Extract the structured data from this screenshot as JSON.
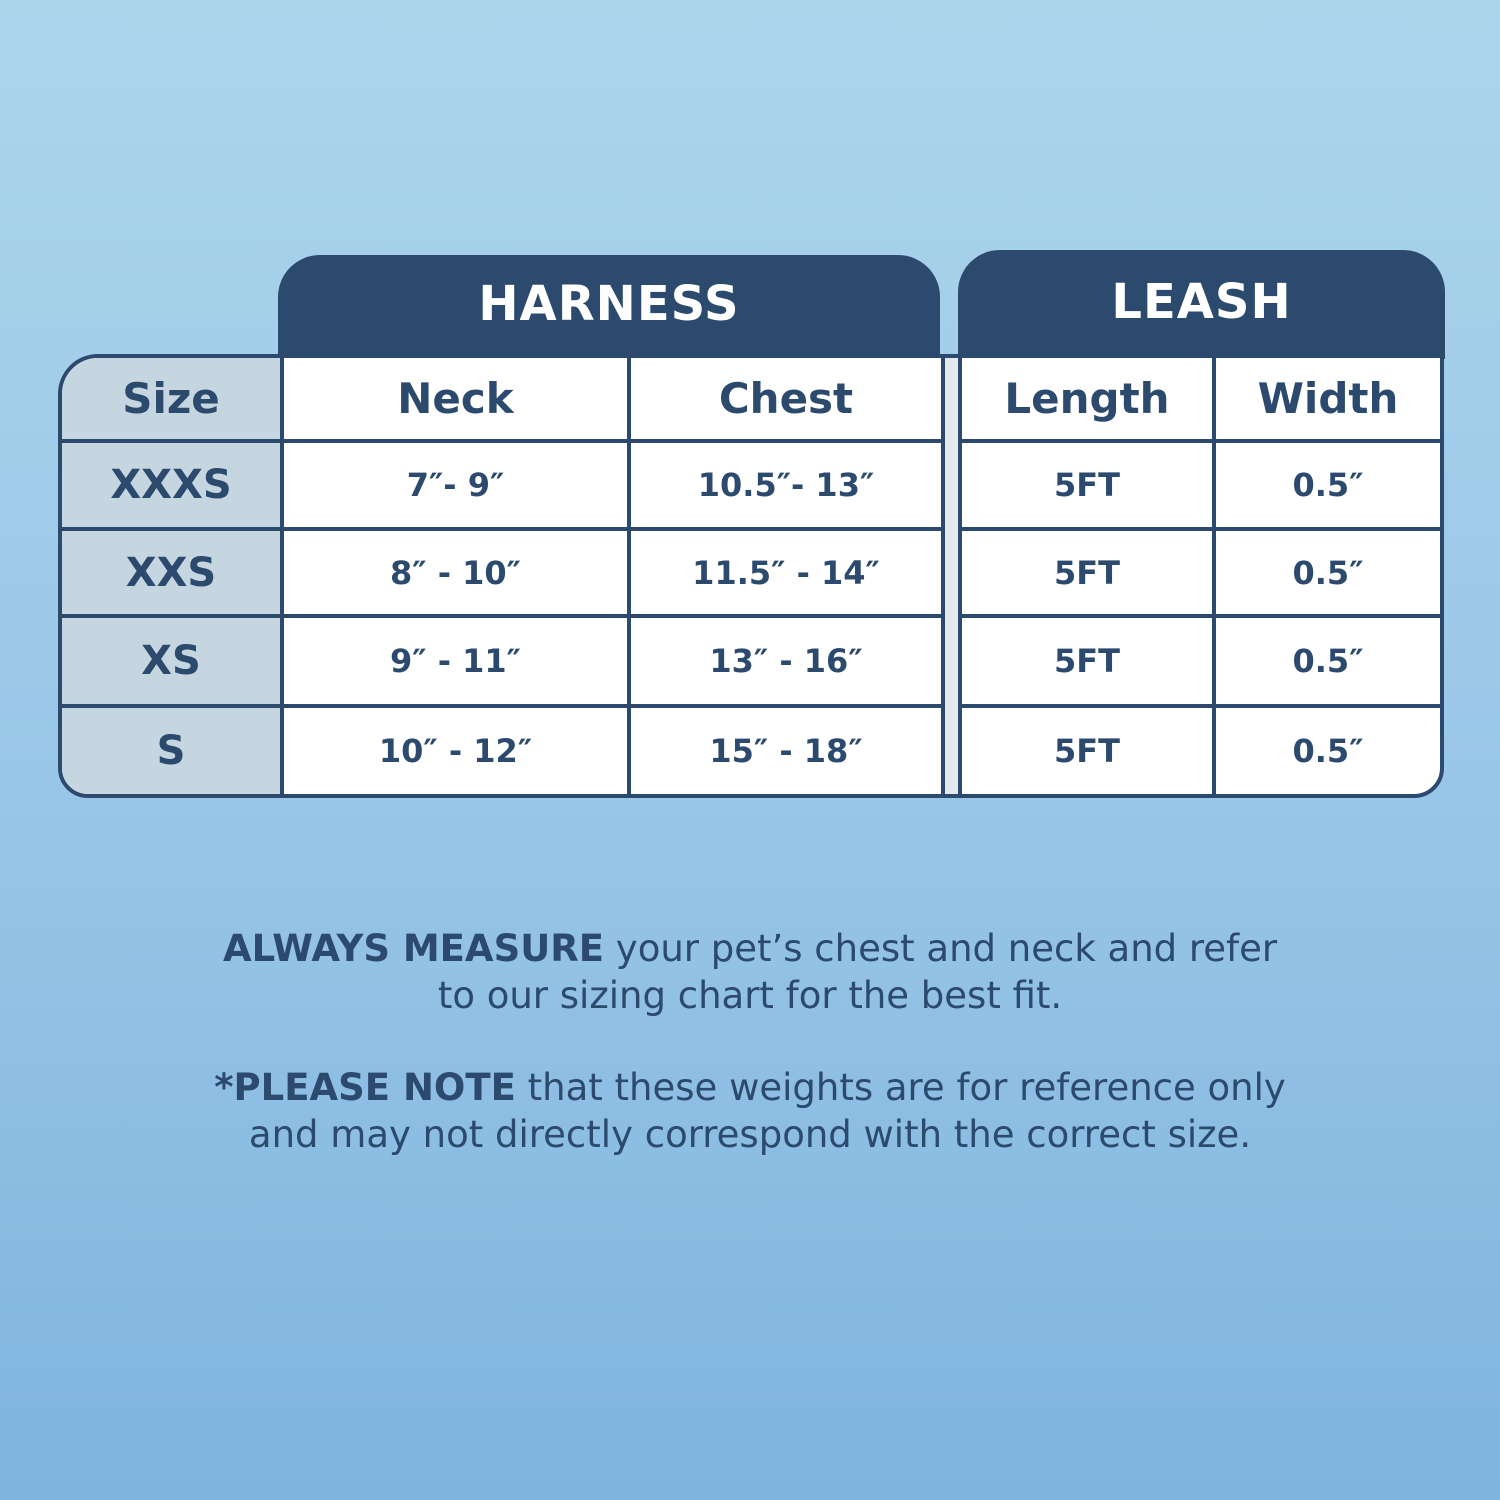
{
  "groups": {
    "harness": "HARNESS",
    "leash": "LEASH"
  },
  "headers": {
    "size": "Size",
    "neck": "Neck",
    "chest": "Chest",
    "length": "Length",
    "width": "Width"
  },
  "rows": [
    {
      "size": "XXXS",
      "neck": "7″- 9″",
      "chest": "10.5″- 13″",
      "length": "5FT",
      "width": "0.5″"
    },
    {
      "size": "XXS",
      "neck": "8″ - 10″",
      "chest": "11.5″ - 14″",
      "length": "5FT",
      "width": "0.5″"
    },
    {
      "size": "XS",
      "neck": "9″ - 11″",
      "chest": "13″ - 16″",
      "length": "5FT",
      "width": "0.5″"
    },
    {
      "size": "S",
      "neck": "10″ - 12″",
      "chest": "15″ - 18″",
      "length": "5FT",
      "width": "0.5″"
    }
  ],
  "notes": {
    "measure_bold": "ALWAYS MEASURE",
    "measure_line1": " your pet’s chest and neck and refer",
    "measure_line2": "to our sizing chart for the best fit.",
    "please_bold": "*PLEASE NOTE",
    "please_line1": " that these weights are for reference only",
    "please_line2": "and may not directly correspond with the correct size."
  },
  "colors": {
    "navy": "#2b4a6d",
    "size_column": "#c5d6e0",
    "background": "#9cc9e8"
  }
}
